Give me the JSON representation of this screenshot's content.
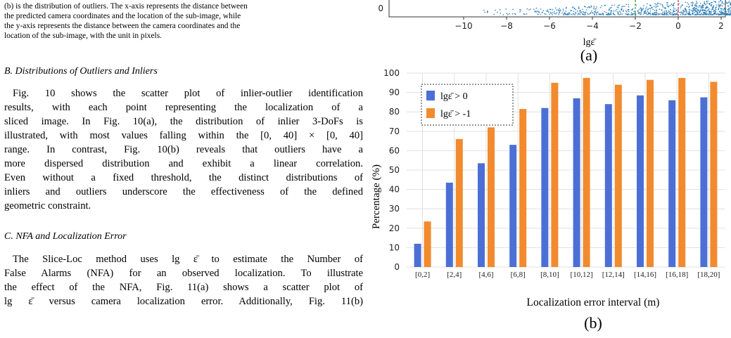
{
  "left": {
    "caption_lines": [
      "(b) is the distribution of outliers. The x-axis represents the distance between",
      "the predicted camera coordinates and the location of the sub-image, while",
      "the y-axis represents the distance between the camera coordinates and the",
      "location of the sub-image, with the unit in pixels."
    ],
    "section_b": {
      "heading": "B.  Distributions of Outliers and Inliers",
      "lines": [
        "Fig. 10 shows the scatter plot of inlier-outlier identification",
        "results, with each point representing the localization of a",
        "sliced image. In Fig. 10(a), the distribution of inlier 3-DoFs is",
        "illustrated, with most values falling within the [0, 40] × [0, 40]",
        "range. In contrast, Fig. 10(b) reveals that outliers have a",
        "more dispersed distribution and exhibit a linear correlation.",
        "Even without a fixed threshold, the distinct distributions of",
        "inliers and outliers underscore the effectiveness of the defined",
        "geometric constraint."
      ]
    },
    "section_c": {
      "heading": "C.  NFA and Localization Error",
      "lines": [
        "The Slice-Loc method uses lg ε̄ to estimate the Number of",
        "False Alarms (NFA) for an observed localization. To illustrate",
        "the effect of the NFA, Fig. 11(a) shows a scatter plot of",
        "lg ε̄ versus camera localization error. Additionally, Fig. 11(b)"
      ]
    }
  },
  "figure_a": {
    "label": "(a)",
    "y_tick": "0",
    "x_ticks": [
      "−10",
      "−8",
      "−6",
      "−4",
      "−2",
      "0",
      "2"
    ],
    "xlabel": "lgε̄"
  },
  "chart_data": {
    "type": "bar",
    "categories": [
      "[0,2]",
      "[2,4]",
      "[4,6]",
      "[6,8]",
      "[8,10]",
      "[10,12]",
      "[12,14]",
      "[14,16]",
      "[16,18]",
      "[18,20]"
    ],
    "series": [
      {
        "name": "lgε̄ > 0",
        "color": "#4c6fd6",
        "values": [
          12,
          43.5,
          53.5,
          63,
          82,
          87,
          84,
          88.5,
          86,
          87.5
        ]
      },
      {
        "name": "lgε̄ > -1",
        "color": "#f28a2e",
        "values": [
          23.5,
          66,
          72,
          81.5,
          95,
          97.5,
          94,
          96.5,
          97.5,
          95.5
        ]
      }
    ],
    "ylabel": "Percentage (%)",
    "xlabel": "Localization error interval  (m)",
    "ylim": [
      0,
      100
    ],
    "yticks": [
      0,
      10,
      20,
      30,
      40,
      50,
      60,
      70,
      80,
      90,
      100
    ],
    "grid": true,
    "legend_position": "top-left",
    "panel_label": "(b)"
  }
}
